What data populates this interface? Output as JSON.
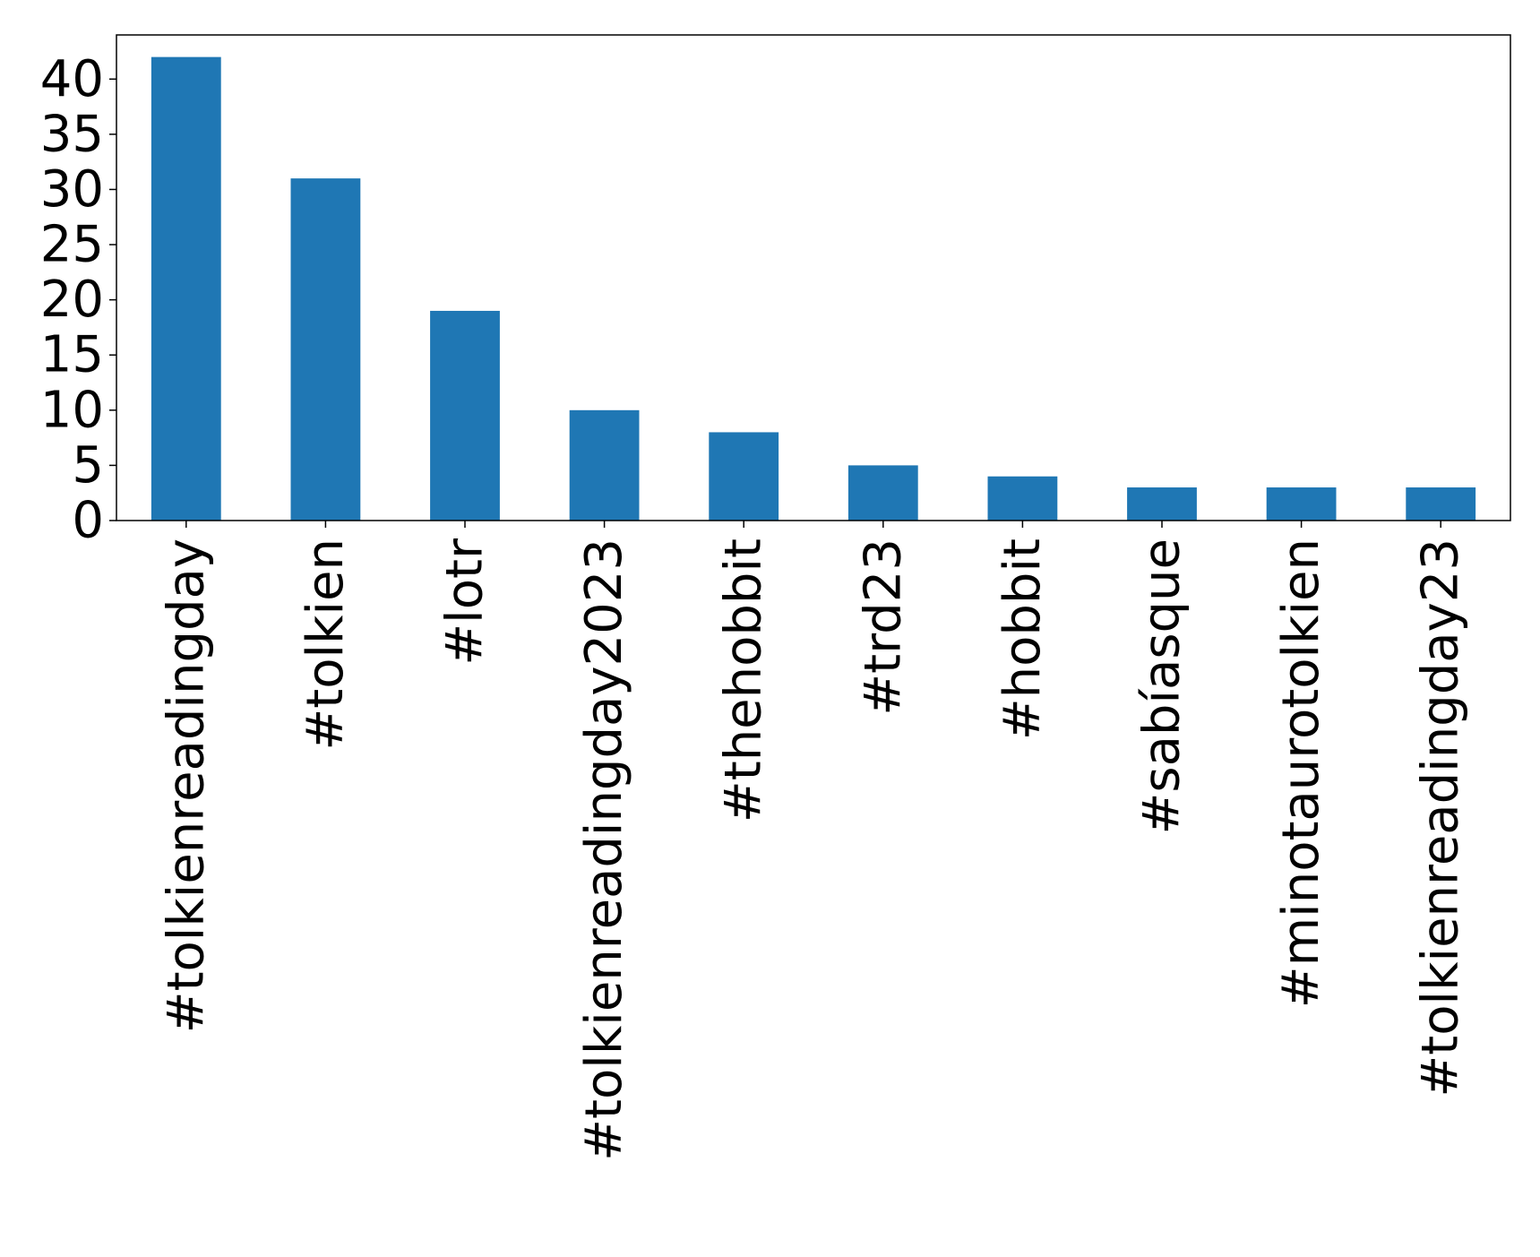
{
  "chart_data": {
    "type": "bar",
    "title": "",
    "xlabel": "",
    "ylabel": "",
    "categories": [
      "#tolkienreadingday",
      "#tolkien",
      "#lotr",
      "#tolkienreadingday2023",
      "#thehobbit",
      "#trd23",
      "#hobbit",
      "#sabíasque",
      "#minotaurotolkien",
      "#tolkienreadingday23"
    ],
    "values": [
      42,
      31,
      19,
      10,
      8,
      5,
      4,
      3,
      3,
      3
    ],
    "ylim": [
      0,
      44
    ],
    "yticks": [
      0,
      5,
      10,
      15,
      20,
      25,
      30,
      35,
      40
    ],
    "bar_color": "#1f77b4",
    "grid": false,
    "legend": "none"
  }
}
